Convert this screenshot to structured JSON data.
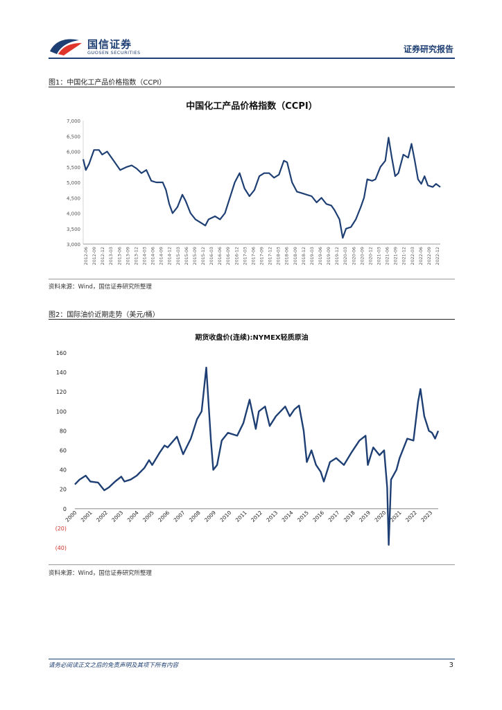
{
  "header": {
    "logo_cn": "国信证券",
    "logo_en": "GUOSEN SECURITIES",
    "report_type": "证券研究报告",
    "brand_color": "#1e3f73",
    "accent_color": "#e0352b"
  },
  "figure1": {
    "caption": "图1：中国化工产品价格指数（CCPI）",
    "source": "资料来源：Wind，国信证券研究所整理"
  },
  "figure2": {
    "caption": "图2：国际油价近期走势（美元/桶）",
    "source": "资料来源：Wind，国信证券研究所整理"
  },
  "chart_data": [
    {
      "type": "line",
      "title": "中国化工产品价格指数（CCPI）",
      "xlabel": "",
      "ylabel": "",
      "ylim": [
        3000,
        7000
      ],
      "yticks": [
        "3,000",
        "3,500",
        "4,000",
        "4,500",
        "5,000",
        "5,500",
        "6,000",
        "6,500",
        "7,000"
      ],
      "x_range": [
        2012.42,
        2023.33
      ],
      "xtick_labels": [
        "2012-06",
        "2012-09",
        "2012-12",
        "2013-03",
        "2013-06",
        "2013-09",
        "2013-12",
        "2014-03",
        "2014-06",
        "2014-09",
        "2014-12",
        "2015-03",
        "2015-06",
        "2015-09",
        "2015-12",
        "2016-03",
        "2016-06",
        "2016-09",
        "2016-12",
        "2017-03",
        "2017-06",
        "2017-09",
        "2017-12",
        "2018-03",
        "2018-06",
        "2018-09",
        "2018-12",
        "2019-03",
        "2019-06",
        "2019-09",
        "2019-12",
        "2020-03",
        "2020-06",
        "2020-09",
        "2020-12",
        "2021-03",
        "2021-06",
        "2021-09",
        "2021-12",
        "2022-03",
        "2022-06",
        "2022-09",
        "2022-12"
      ],
      "series": [
        {
          "name": "CCPI",
          "color": "#1e3f73",
          "points": [
            [
              2012.42,
              5750
            ],
            [
              2012.5,
              5400
            ],
            [
              2012.6,
              5600
            ],
            [
              2012.75,
              6050
            ],
            [
              2012.9,
              6050
            ],
            [
              2013.0,
              5900
            ],
            [
              2013.15,
              6000
            ],
            [
              2013.35,
              5700
            ],
            [
              2013.55,
              5400
            ],
            [
              2013.75,
              5500
            ],
            [
              2013.9,
              5550
            ],
            [
              2014.05,
              5450
            ],
            [
              2014.2,
              5300
            ],
            [
              2014.35,
              5400
            ],
            [
              2014.5,
              5050
            ],
            [
              2014.65,
              5000
            ],
            [
              2014.85,
              5000
            ],
            [
              2014.95,
              4750
            ],
            [
              2015.05,
              4300
            ],
            [
              2015.15,
              4000
            ],
            [
              2015.3,
              4200
            ],
            [
              2015.45,
              4600
            ],
            [
              2015.55,
              4400
            ],
            [
              2015.7,
              4000
            ],
            [
              2015.85,
              3800
            ],
            [
              2016.0,
              3700
            ],
            [
              2016.15,
              3600
            ],
            [
              2016.25,
              3800
            ],
            [
              2016.45,
              3900
            ],
            [
              2016.6,
              3800
            ],
            [
              2016.75,
              4000
            ],
            [
              2016.9,
              4500
            ],
            [
              2017.05,
              5000
            ],
            [
              2017.2,
              5300
            ],
            [
              2017.35,
              4800
            ],
            [
              2017.5,
              4550
            ],
            [
              2017.65,
              4750
            ],
            [
              2017.8,
              5200
            ],
            [
              2017.95,
              5300
            ],
            [
              2018.1,
              5300
            ],
            [
              2018.25,
              5150
            ],
            [
              2018.4,
              5250
            ],
            [
              2018.55,
              5700
            ],
            [
              2018.65,
              5650
            ],
            [
              2018.8,
              5000
            ],
            [
              2018.95,
              4700
            ],
            [
              2019.1,
              4650
            ],
            [
              2019.25,
              4600
            ],
            [
              2019.4,
              4550
            ],
            [
              2019.55,
              4350
            ],
            [
              2019.7,
              4500
            ],
            [
              2019.85,
              4300
            ],
            [
              2020.0,
              4250
            ],
            [
              2020.1,
              4100
            ],
            [
              2020.25,
              3800
            ],
            [
              2020.35,
              3200
            ],
            [
              2020.45,
              3500
            ],
            [
              2020.6,
              3550
            ],
            [
              2020.75,
              3800
            ],
            [
              2020.9,
              4200
            ],
            [
              2021.0,
              4500
            ],
            [
              2021.1,
              5100
            ],
            [
              2021.25,
              5050
            ],
            [
              2021.35,
              5100
            ],
            [
              2021.5,
              5500
            ],
            [
              2021.65,
              5700
            ],
            [
              2021.75,
              6450
            ],
            [
              2021.85,
              5800
            ],
            [
              2021.95,
              5200
            ],
            [
              2022.05,
              5300
            ],
            [
              2022.2,
              5900
            ],
            [
              2022.35,
              5800
            ],
            [
              2022.45,
              6250
            ],
            [
              2022.55,
              5700
            ],
            [
              2022.65,
              5100
            ],
            [
              2022.75,
              4950
            ],
            [
              2022.85,
              5200
            ],
            [
              2022.95,
              4900
            ],
            [
              2023.1,
              4850
            ],
            [
              2023.2,
              4950
            ],
            [
              2023.33,
              4850
            ]
          ]
        }
      ]
    },
    {
      "type": "line",
      "title": "期货收盘价(连续):NYMEX轻质原油",
      "xlabel": "",
      "ylabel": "",
      "ylim": [
        -40,
        160
      ],
      "yticks": [
        "(40)",
        "(20)",
        "0",
        "20",
        "40",
        "60",
        "80",
        "100",
        "120",
        "140",
        "160"
      ],
      "x_range": [
        2000,
        2023.5
      ],
      "xtick_labels": [
        "2000",
        "2001",
        "2002",
        "2003",
        "2004",
        "2005",
        "2006",
        "2007",
        "2008",
        "2009",
        "2010",
        "2011",
        "2012",
        "2013",
        "2014",
        "2015",
        "2016",
        "2017",
        "2018",
        "2019",
        "2020",
        "2021",
        "2022",
        "2023"
      ],
      "series": [
        {
          "name": "NYMEX轻质原油",
          "color": "#1e3f73",
          "points": [
            [
              2000.0,
              25
            ],
            [
              2000.3,
              30
            ],
            [
              2000.7,
              34
            ],
            [
              2001.0,
              28
            ],
            [
              2001.5,
              27
            ],
            [
              2001.9,
              19
            ],
            [
              2002.2,
              22
            ],
            [
              2002.6,
              28
            ],
            [
              2003.0,
              33
            ],
            [
              2003.2,
              28
            ],
            [
              2003.6,
              30
            ],
            [
              2004.0,
              34
            ],
            [
              2004.5,
              42
            ],
            [
              2004.8,
              50
            ],
            [
              2005.0,
              45
            ],
            [
              2005.5,
              58
            ],
            [
              2005.8,
              65
            ],
            [
              2006.0,
              63
            ],
            [
              2006.6,
              74
            ],
            [
              2007.0,
              56
            ],
            [
              2007.5,
              72
            ],
            [
              2007.9,
              92
            ],
            [
              2008.2,
              100
            ],
            [
              2008.5,
              145
            ],
            [
              2008.8,
              70
            ],
            [
              2008.95,
              40
            ],
            [
              2009.2,
              45
            ],
            [
              2009.5,
              70
            ],
            [
              2009.9,
              78
            ],
            [
              2010.5,
              75
            ],
            [
              2010.9,
              88
            ],
            [
              2011.3,
              112
            ],
            [
              2011.7,
              82
            ],
            [
              2011.9,
              100
            ],
            [
              2012.3,
              105
            ],
            [
              2012.6,
              85
            ],
            [
              2013.0,
              95
            ],
            [
              2013.6,
              105
            ],
            [
              2013.9,
              95
            ],
            [
              2014.2,
              102
            ],
            [
              2014.5,
              106
            ],
            [
              2014.8,
              80
            ],
            [
              2015.0,
              48
            ],
            [
              2015.3,
              60
            ],
            [
              2015.6,
              45
            ],
            [
              2015.9,
              38
            ],
            [
              2016.1,
              28
            ],
            [
              2016.5,
              48
            ],
            [
              2016.9,
              52
            ],
            [
              2017.4,
              45
            ],
            [
              2017.9,
              58
            ],
            [
              2018.4,
              70
            ],
            [
              2018.8,
              75
            ],
            [
              2018.95,
              45
            ],
            [
              2019.3,
              63
            ],
            [
              2019.7,
              55
            ],
            [
              2020.0,
              60
            ],
            [
              2020.2,
              22
            ],
            [
              2020.3,
              -37
            ],
            [
              2020.45,
              30
            ],
            [
              2020.8,
              40
            ],
            [
              2021.0,
              52
            ],
            [
              2021.5,
              72
            ],
            [
              2021.9,
              70
            ],
            [
              2022.2,
              110
            ],
            [
              2022.35,
              123
            ],
            [
              2022.6,
              95
            ],
            [
              2022.9,
              80
            ],
            [
              2023.1,
              78
            ],
            [
              2023.3,
              72
            ],
            [
              2023.5,
              80
            ]
          ]
        }
      ]
    }
  ]
}
